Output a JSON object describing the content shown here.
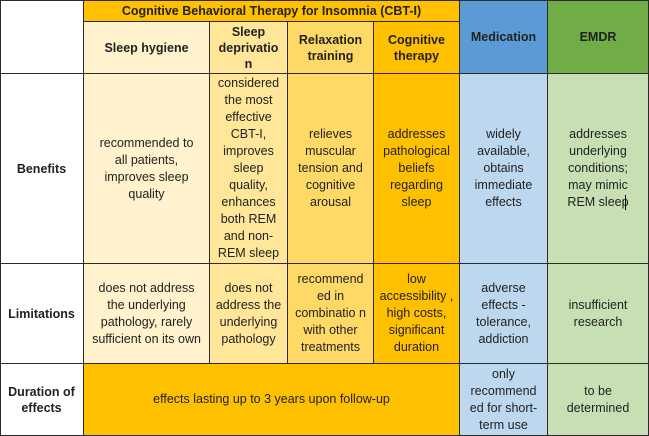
{
  "table": {
    "group_header": "Cognitive Behavioral Therapy for Insomnia (CBT-I)",
    "columns": {
      "sleep_hygiene": "Sleep hygiene",
      "sleep_deprivation": "Sleep deprivatio n",
      "relaxation_training": "Relaxation training",
      "cognitive_therapy": "Cognitive therapy",
      "medication": "Medication",
      "emdr": "EMDR"
    },
    "rows": {
      "benefits": {
        "label": "Benefits",
        "sleep_hygiene": "recommended to all patients, improves sleep quality",
        "sleep_deprivation": "considered the most effective CBT-I, improves sleep quality, enhances both REM and non-REM sleep",
        "relaxation_training": "relieves muscular tension and cognitive arousal",
        "cognitive_therapy": "addresses pathological beliefs regarding sleep",
        "medication": "widely available, obtains immediate effects",
        "emdr": "addresses underlying conditions; may mimic REM sleep"
      },
      "limitations": {
        "label": "Limitations",
        "sleep_hygiene": "does not address the underlying pathology, rarely sufficient on its own",
        "sleep_deprivation": "does not address the underlying pathology",
        "relaxation_training": "recommend ed in combinatio n with other treatments",
        "cognitive_therapy": "low accessibility , high costs, significant duration",
        "medication": "adverse effects - tolerance, addiction",
        "emdr": "insufficient research"
      },
      "duration": {
        "label": "Duration of effects",
        "cbt": "effects lasting up to 3 years upon follow-up",
        "medication": "only recommend ed for short-term use",
        "emdr": "to be determined"
      }
    }
  }
}
